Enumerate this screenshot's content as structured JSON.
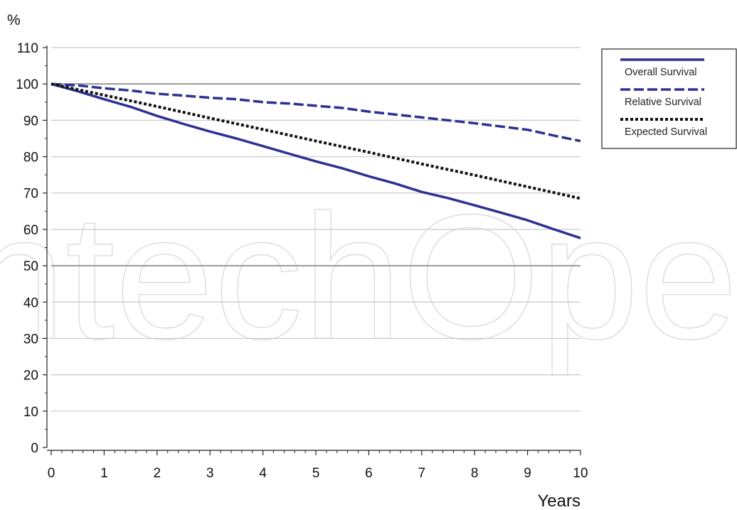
{
  "chart_data": {
    "type": "line",
    "ylabel": "%",
    "xlabel": "Years",
    "xlim": [
      0,
      10
    ],
    "ylim": [
      0,
      110
    ],
    "x_ticks": [
      0,
      1,
      2,
      3,
      4,
      5,
      6,
      7,
      8,
      9,
      10
    ],
    "y_ticks": [
      0,
      10,
      20,
      30,
      40,
      50,
      60,
      70,
      80,
      90,
      100,
      110
    ],
    "grid": true,
    "emphasized_gridlines": [
      50,
      100
    ],
    "legend_position": "top-right, outside plot",
    "series": [
      {
        "name": "Overall Survival",
        "style": "solid",
        "color": "#2e3192",
        "x": [
          0,
          0.5,
          1,
          1.5,
          2,
          2.5,
          3,
          3.5,
          4,
          4.5,
          5,
          5.5,
          6,
          6.5,
          7,
          7.5,
          8,
          8.5,
          9,
          9.5,
          10
        ],
        "values": [
          100,
          98,
          95.8,
          93.7,
          91.2,
          89,
          86.9,
          85,
          82.9,
          80.8,
          78.7,
          76.8,
          74.6,
          72.6,
          70.3,
          68.6,
          66.6,
          64.6,
          62.5,
          60,
          57.6
        ]
      },
      {
        "name": "Relative Survival",
        "style": "dashed",
        "color": "#2e3192",
        "x": [
          0,
          0.5,
          1,
          1.5,
          2,
          2.5,
          3,
          3.5,
          4,
          4.5,
          5,
          5.5,
          6,
          6.5,
          7,
          7.5,
          8,
          8.5,
          9,
          9.5,
          10
        ],
        "values": [
          100,
          99.6,
          98.8,
          98.2,
          97.3,
          96.8,
          96.2,
          95.8,
          95,
          94.6,
          94,
          93.4,
          92.4,
          91.6,
          90.8,
          90,
          89.2,
          88.3,
          87.4,
          85.8,
          84.3
        ]
      },
      {
        "name": "Expected Survival",
        "style": "dotted",
        "color": "#111111",
        "x": [
          0,
          1,
          2,
          3,
          4,
          5,
          6,
          7,
          8,
          9,
          10
        ],
        "values": [
          100,
          96.9,
          93.8,
          90.6,
          87.5,
          84.3,
          81.2,
          78,
          74.9,
          71.7,
          68.5
        ]
      }
    ]
  },
  "watermark": "IntechOpen"
}
